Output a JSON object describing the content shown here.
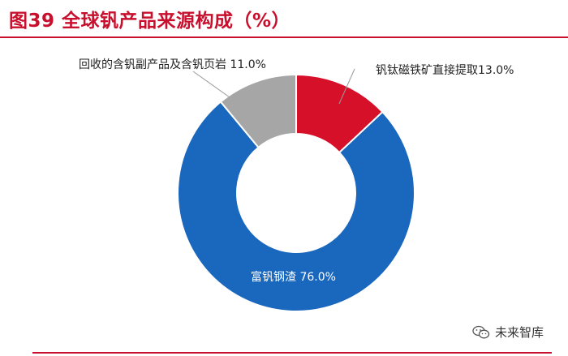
{
  "header": {
    "title": "图39  全球钒产品来源构成（%）"
  },
  "colors": {
    "accent": "#c8102e",
    "blue": "#1a67be",
    "red": "#d7102a",
    "gray": "#a6a6a6"
  },
  "chart_data": {
    "type": "pie",
    "variant": "donut",
    "title": "图39  全球钒产品来源构成（%）",
    "series": [
      {
        "name": "钒钛磁铁矿直接提取",
        "value": 13.0,
        "label": "钒钛磁铁矿直接提取13.0%",
        "color": "#d7102a"
      },
      {
        "name": "富钒钢渣",
        "value": 76.0,
        "label": "富钒钢渣 76.0%",
        "color": "#1a67be"
      },
      {
        "name": "回收的含钒副产品及含钒页岩",
        "value": 11.0,
        "label": "回收的含钒副产品及含钒页岩 11.0%",
        "color": "#a6a6a6"
      }
    ],
    "legend": "none"
  },
  "watermark": {
    "text": "未来智库",
    "icon": "wechat-icon"
  }
}
